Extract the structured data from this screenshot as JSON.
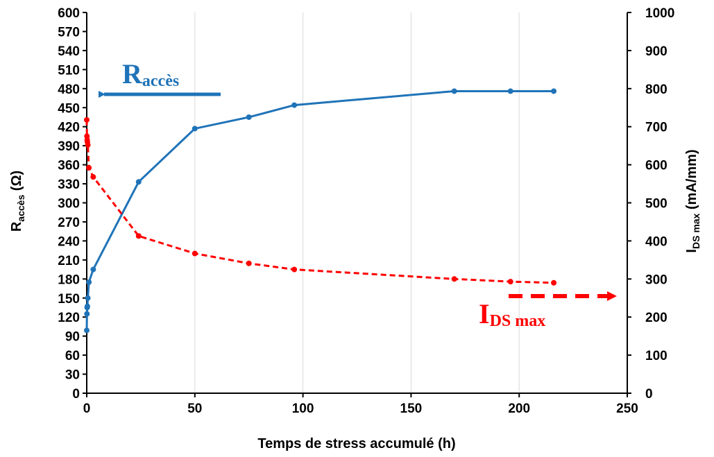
{
  "chart_data": {
    "type": "line",
    "xlabel": "Temps de stress accumulé (h)",
    "ylabel_left": {
      "main": "R",
      "sub": "accès",
      "unit": " (Ω)"
    },
    "ylabel_right": {
      "main": "I",
      "sub": "DS max",
      "unit": " (mA/mm)"
    },
    "xlim": [
      0,
      250
    ],
    "x_ticks": [
      0,
      50,
      100,
      150,
      200,
      250
    ],
    "ylim_left": [
      0,
      600
    ],
    "y_ticks_left": [
      0,
      30,
      60,
      90,
      120,
      150,
      180,
      210,
      240,
      270,
      300,
      330,
      360,
      390,
      420,
      450,
      480,
      510,
      540,
      570,
      600
    ],
    "ylim_right": [
      0,
      1000
    ],
    "y_ticks_right": [
      0,
      100,
      200,
      300,
      400,
      500,
      600,
      700,
      800,
      900,
      1000
    ],
    "grid": "vertical",
    "series": [
      {
        "axis": "left",
        "color": "#1f73b8",
        "style": "solid",
        "x": [
          0,
          0.1,
          0.2,
          0.3,
          0.5,
          1,
          3,
          24,
          50,
          75,
          96,
          170,
          196,
          216
        ],
        "y": [
          99,
          125,
          135,
          137,
          150,
          175,
          195,
          333,
          417,
          435,
          454,
          476,
          476,
          476
        ]
      },
      {
        "axis": "right",
        "color": "#ff0000",
        "style": "dashed",
        "x": [
          0,
          0.1,
          0.2,
          0.3,
          0.5,
          1,
          3,
          24,
          50,
          75,
          96,
          170,
          196,
          216
        ],
        "y": [
          718,
          675,
          665,
          660,
          652,
          592,
          568,
          413,
          367,
          341,
          325,
          300,
          293,
          290
        ]
      }
    ],
    "annotations": [
      {
        "main": "R",
        "sub": "accès",
        "color": "#1f73b8",
        "arrow": "left"
      },
      {
        "main": "I",
        "sub": "DS max",
        "color": "#ff0000",
        "arrow": "right"
      }
    ]
  }
}
